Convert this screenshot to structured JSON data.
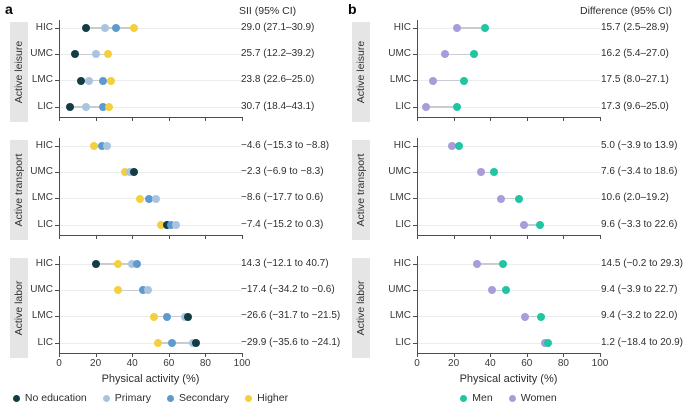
{
  "chart_data": [
    {
      "type": "scatter",
      "subtype": "dumbbell-dot-plot",
      "panel": "a",
      "title": "SII (95% CI)",
      "xlabel": "Physical activity (%)",
      "xlim": [
        0,
        100
      ],
      "x_ticks": [
        0,
        20,
        40,
        60,
        80,
        100
      ],
      "grid": "per-row horizontal gridlines",
      "legend_position": "bottom",
      "series": [
        "No education",
        "Primary",
        "Secondary",
        "Higher"
      ],
      "series_colors": [
        "#133c45",
        "#a8c4df",
        "#5f9ace",
        "#f4d03e"
      ],
      "groups": [
        {
          "group": "Active leisure",
          "rows": [
            {
              "label": "HIC",
              "annotation": "29.0 (27.1–30.9)",
              "values": [
                15,
                25,
                31,
                41
              ]
            },
            {
              "label": "UMC",
              "annotation": "25.7 (12.2–39.2)",
              "values": [
                9,
                20,
                null,
                27
              ]
            },
            {
              "label": "LMC",
              "annotation": "23.8 (22.6–25.0)",
              "values": [
                12,
                16.5,
                24,
                28.5
              ]
            },
            {
              "label": "LIC",
              "annotation": "30.7 (18.4–43.1)",
              "values": [
                6,
                15,
                24,
                27.5
              ]
            }
          ]
        },
        {
          "group": "Active transport",
          "rows": [
            {
              "label": "HIC",
              "annotation": "−4.6 (−15.3 to −8.8)",
              "values": [
                null,
                26,
                23.5,
                19
              ]
            },
            {
              "label": "UMC",
              "annotation": "−2.3 (−6.9 to −8.3)",
              "values": [
                41,
                39,
                null,
                36
              ]
            },
            {
              "label": "LMC",
              "annotation": "−8.6 (−17.7 to 0.6)",
              "values": [
                null,
                53,
                49,
                44
              ]
            },
            {
              "label": "LIC",
              "annotation": "−7.4 (−15.2 to 0.3)",
              "values": [
                59,
                64,
                61,
                56
              ]
            }
          ]
        },
        {
          "group": "Active labor",
          "rows": [
            {
              "label": "HIC",
              "annotation": "14.3 (−12.1 to 40.7)",
              "values": [
                20,
                40,
                42.5,
                32
              ]
            },
            {
              "label": "UMC",
              "annotation": "−17.4 (−34.2 to −0.6)",
              "values": [
                null,
                48.5,
                46,
                32
              ]
            },
            {
              "label": "LMC",
              "annotation": "−26.6 (−31.7 to −21.5)",
              "values": [
                70.5,
                69,
                59,
                52
              ]
            },
            {
              "label": "LIC",
              "annotation": "−29.9 (−35.6 to −24.1)",
              "values": [
                75,
                73,
                62,
                54
              ]
            }
          ]
        }
      ]
    },
    {
      "type": "scatter",
      "subtype": "dumbbell-dot-plot",
      "panel": "b",
      "title": "Difference (95% CI)",
      "xlabel": "Physical activity (%)",
      "xlim": [
        0,
        100
      ],
      "x_ticks": [
        0,
        20,
        40,
        60,
        80,
        100
      ],
      "grid": "per-row horizontal gridlines",
      "legend_position": "bottom",
      "series": [
        "Men",
        "Women"
      ],
      "series_colors": [
        "#20c5a2",
        "#a89dda"
      ],
      "groups": [
        {
          "group": "Active leisure",
          "rows": [
            {
              "label": "HIC",
              "annotation": "15.7 (2.5–28.9)",
              "values": [
                37,
                22
              ]
            },
            {
              "label": "UMC",
              "annotation": "16.2 (5.4–27.0)",
              "values": [
                31,
                15.5
              ]
            },
            {
              "label": "LMC",
              "annotation": "17.5 (8.0–27.1)",
              "values": [
                25.5,
                9
              ]
            },
            {
              "label": "LIC",
              "annotation": "17.3 (9.6–25.0)",
              "values": [
                22,
                5
              ]
            }
          ]
        },
        {
          "group": "Active transport",
          "rows": [
            {
              "label": "HIC",
              "annotation": "5.0 (−3.9 to 13.9)",
              "values": [
                23,
                19
              ]
            },
            {
              "label": "UMC",
              "annotation": "7.6 (−3.4 to 18.6)",
              "values": [
                42,
                35
              ]
            },
            {
              "label": "LMC",
              "annotation": "10.6 (2.0–19.2)",
              "values": [
                56,
                46
              ]
            },
            {
              "label": "LIC",
              "annotation": "9.6 (−3.3 to 22.6)",
              "values": [
                67,
                58.5
              ]
            }
          ]
        },
        {
          "group": "Active labor",
          "rows": [
            {
              "label": "HIC",
              "annotation": "14.5 (−0.2 to 29.3)",
              "values": [
                47,
                33
              ]
            },
            {
              "label": "UMC",
              "annotation": "9.4 (−3.9 to 22.7)",
              "values": [
                48.5,
                41
              ]
            },
            {
              "label": "LMC",
              "annotation": "9.4 (−3.2 to 22.0)",
              "values": [
                68,
                59
              ]
            },
            {
              "label": "LIC",
              "annotation": "1.2 (−18.4 to 20.9)",
              "values": [
                71.5,
                70
              ]
            }
          ]
        }
      ]
    }
  ]
}
